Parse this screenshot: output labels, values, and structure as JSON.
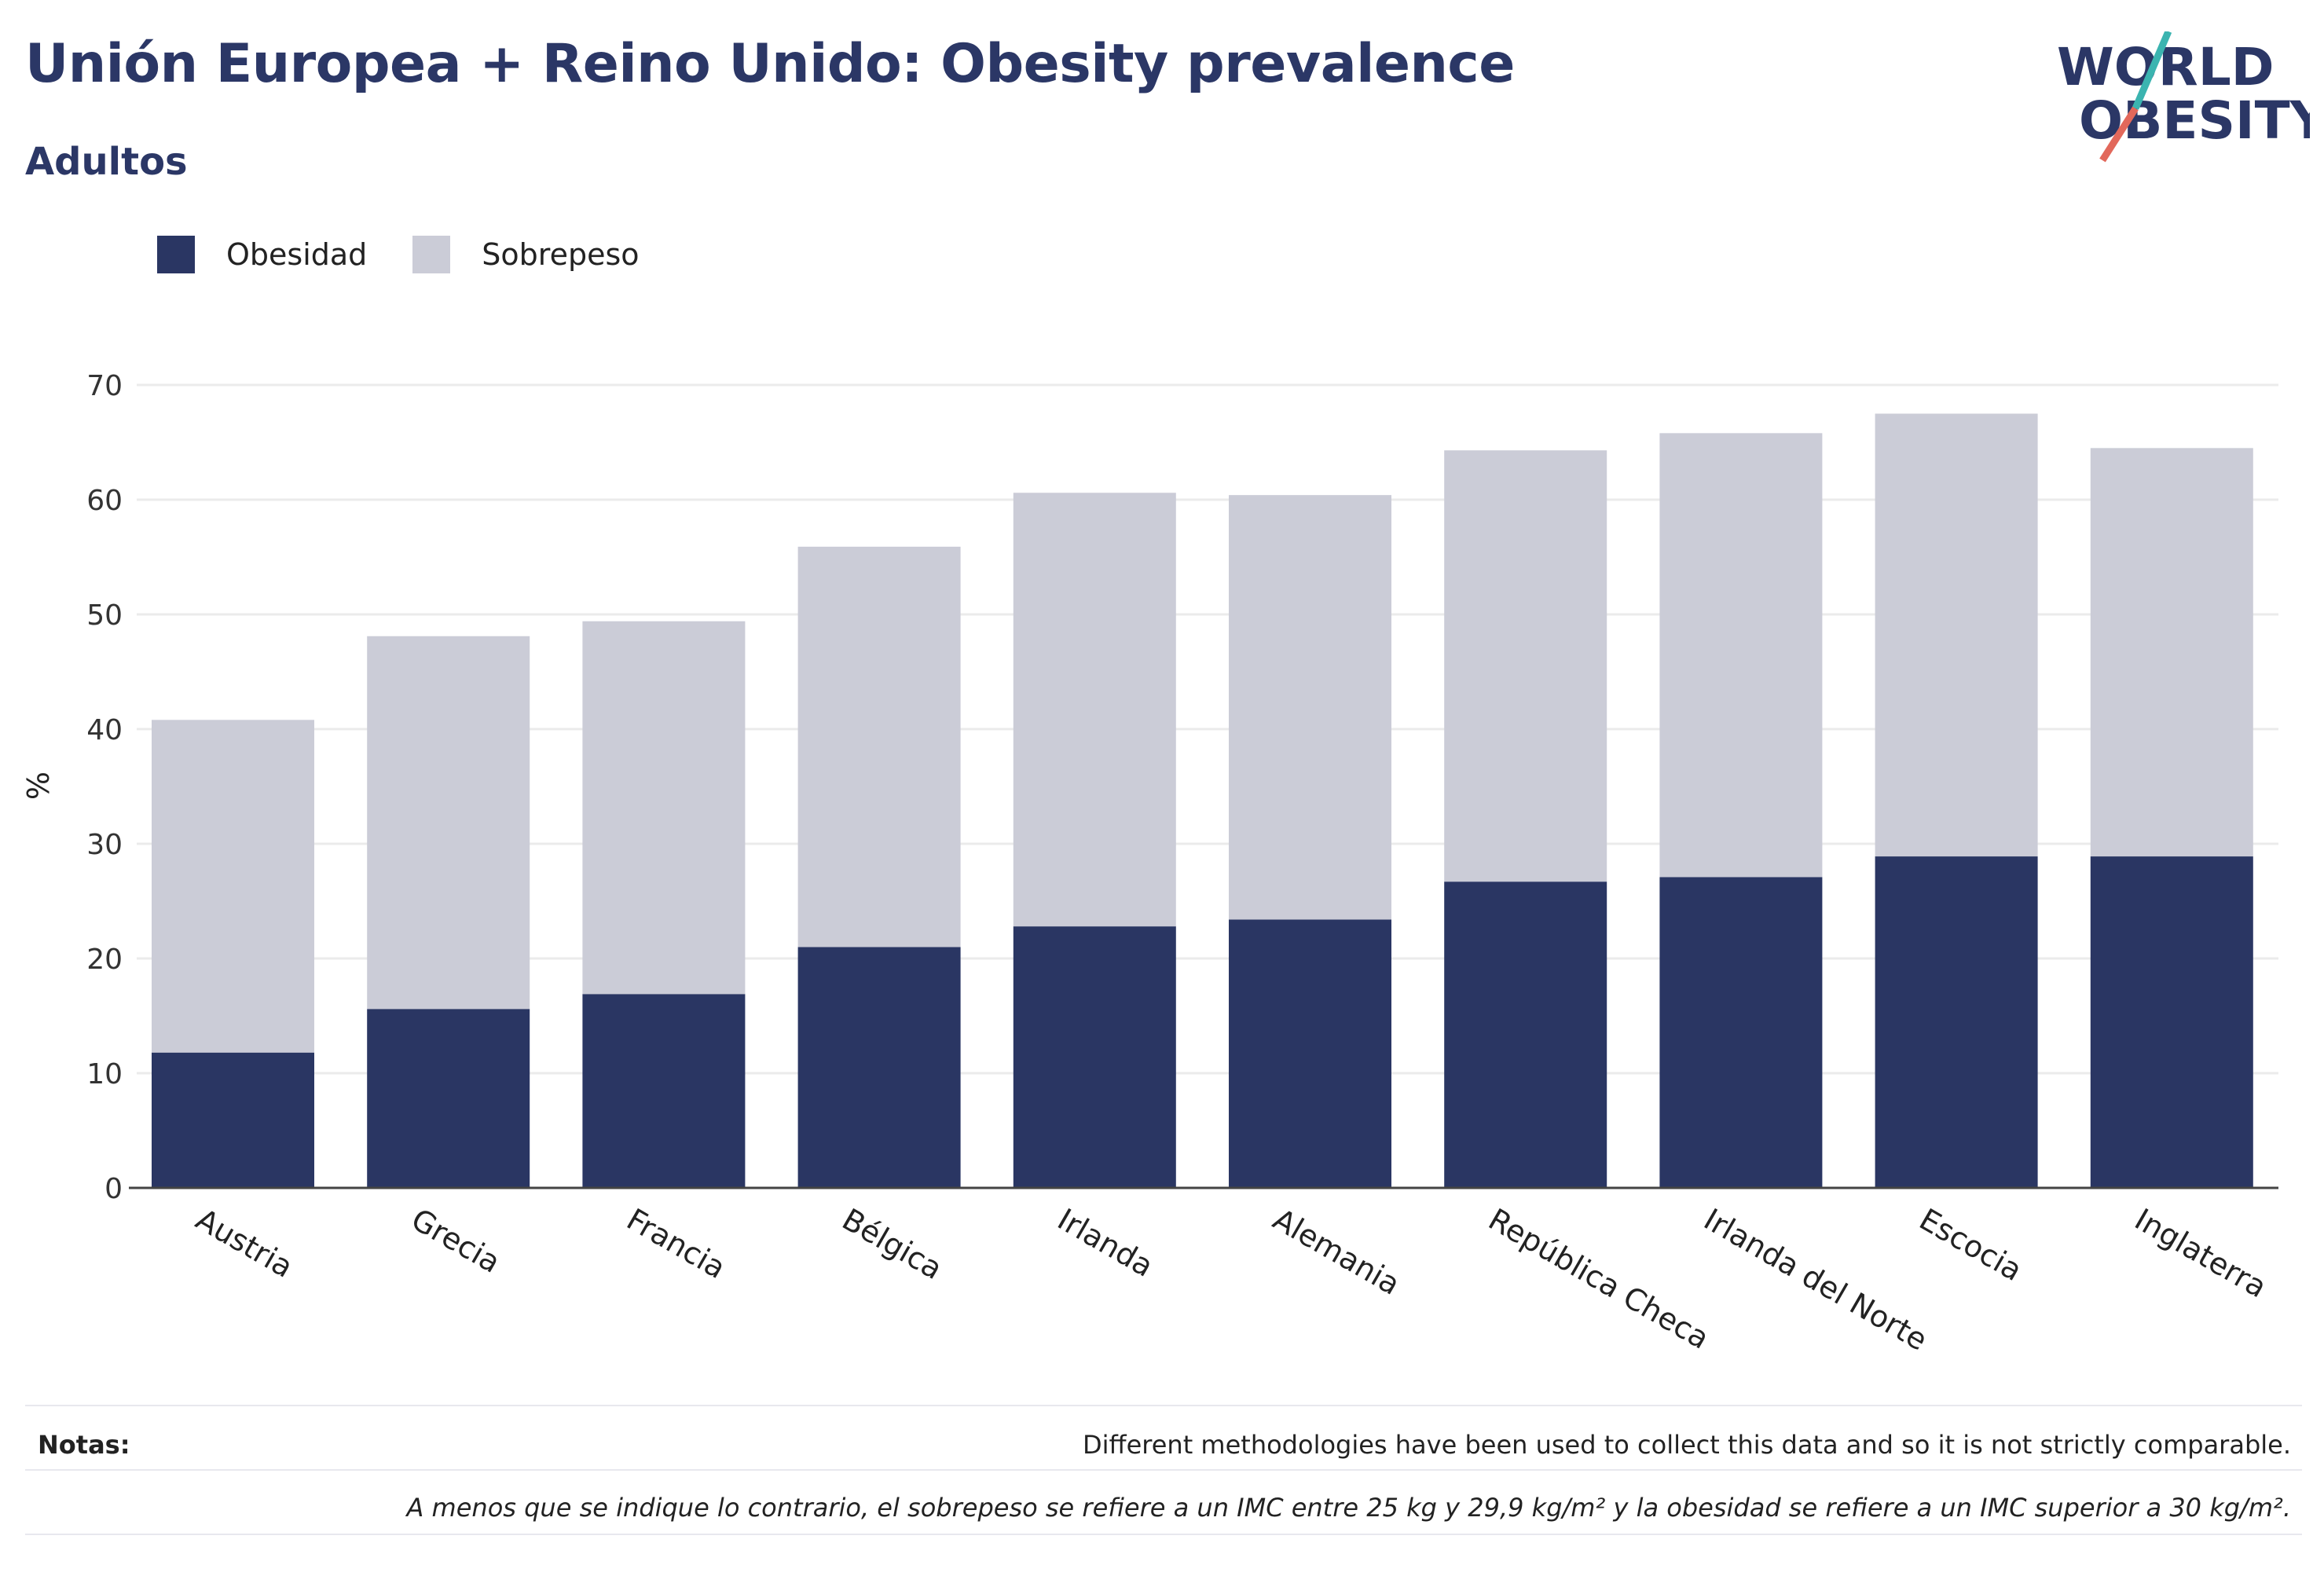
{
  "header": {
    "title": "Unión Europea + Reino Unido: Obesity prevalence",
    "subtitle": "Adultos",
    "logo_text": [
      "WORLD",
      "OBESITY"
    ]
  },
  "colors": {
    "obesity": "#2a3663",
    "overweight": "#cbccd7",
    "text": "#2a3663",
    "grid": "#ebebeb",
    "axis": "#444444",
    "logo_teal": "#3bb4b0",
    "logo_coral": "#e2685b"
  },
  "chart_data": {
    "type": "bar",
    "stacked": true,
    "ylabel": "%",
    "xlabel": "",
    "ylim": [
      0,
      70
    ],
    "yticks": [
      0,
      10,
      20,
      30,
      40,
      50,
      60,
      70
    ],
    "grid": true,
    "legend_position": "top-left",
    "categories": [
      "Austria",
      "Grecia",
      "Francia",
      "Bélgica",
      "Irlanda",
      "Alemania",
      "República Checa",
      "Irlanda del Norte",
      "Escocia",
      "Inglaterra"
    ],
    "series": [
      {
        "name": "Obesidad",
        "color": "#2a3663",
        "values": [
          11.8,
          15.6,
          16.9,
          21.0,
          22.8,
          23.4,
          26.7,
          27.1,
          28.9,
          28.9
        ]
      },
      {
        "name": "Sobrepeso",
        "color": "#cbccd7",
        "values": [
          29.0,
          32.5,
          32.5,
          34.9,
          37.8,
          37.0,
          37.6,
          38.7,
          38.6,
          35.6
        ]
      }
    ]
  },
  "notes": {
    "label": "Notas:",
    "line1": "Different methodologies have been used to collect this data and so it is not strictly comparable.",
    "line2": "A menos que se indique lo contrario, el sobrepeso se refiere a un IMC entre 25 kg y 29,9 kg/m² y la obesidad se refiere a un IMC superior a 30 kg/m²."
  }
}
